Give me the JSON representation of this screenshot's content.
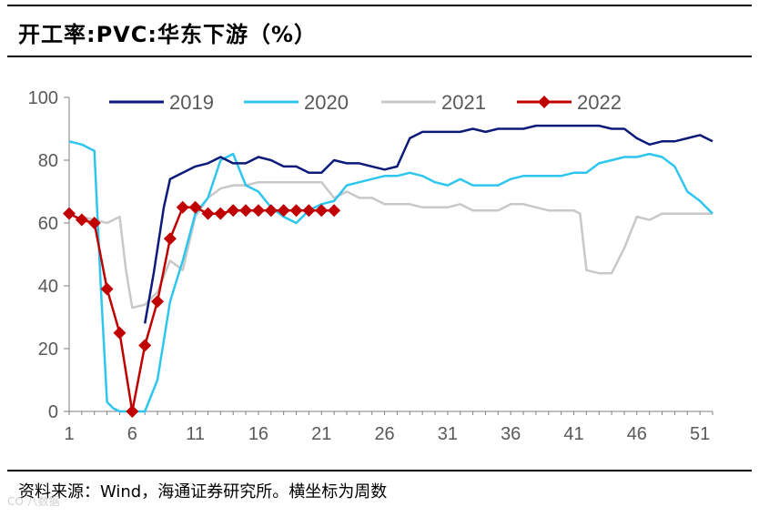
{
  "title": "开工率:PVC:华东下游（%）",
  "source": "资料来源：Wind，海通证券研究所。横坐标为周数",
  "watermark": "CO 八数据",
  "colors": {
    "series_2019": "#0c1a7a",
    "series_2020": "#2ec6ee",
    "series_2021": "#c8c8c8",
    "series_2022": "#c00000",
    "axis": "#7f7f7f"
  },
  "chart_data": {
    "type": "line",
    "title": "开工率:PVC:华东下游（%）",
    "xlabel": "",
    "ylabel": "",
    "x_ticks": [
      "1",
      "6",
      "11",
      "16",
      "21",
      "26",
      "31",
      "36",
      "41",
      "46",
      "51"
    ],
    "y_ticks": [
      "0",
      "20",
      "40",
      "60",
      "80",
      "100"
    ],
    "xlim": [
      1,
      52
    ],
    "ylim": [
      0,
      100
    ],
    "legend_position": "top",
    "series": [
      {
        "name": "2019",
        "x": [
          7,
          7.7,
          8.5,
          9,
          10,
          11,
          12,
          13,
          14,
          15,
          16,
          17,
          18,
          19,
          20,
          21,
          22,
          23,
          24,
          25,
          26,
          27,
          28,
          29,
          30,
          31,
          32,
          33,
          34,
          35,
          36,
          37,
          38,
          39,
          40,
          41,
          42,
          43,
          44,
          45,
          46,
          47,
          48,
          49,
          50,
          51,
          52
        ],
        "values": [
          28,
          44,
          65,
          74,
          76,
          78,
          79,
          81,
          79,
          79,
          81,
          80,
          78,
          78,
          76,
          76,
          80,
          79,
          79,
          78,
          77,
          78,
          87,
          89,
          89,
          89,
          89,
          90,
          89,
          90,
          90,
          90,
          91,
          91,
          91,
          91,
          91,
          91,
          90,
          90,
          87,
          85,
          86,
          86,
          87,
          88,
          86
        ]
      },
      {
        "name": "2020",
        "x": [
          1,
          2,
          3,
          3.5,
          4,
          4.5,
          5,
          6,
          7,
          8,
          9,
          10,
          11,
          12,
          13,
          14,
          15,
          16,
          17,
          18,
          19,
          20,
          21,
          22,
          23,
          24,
          25,
          26,
          27,
          28,
          29,
          30,
          31,
          32,
          33,
          34,
          35,
          36,
          37,
          38,
          39,
          40,
          41,
          42,
          43,
          44,
          45,
          46,
          47,
          48,
          49,
          50,
          51,
          52
        ],
        "values": [
          86,
          85,
          83,
          40,
          3,
          1,
          0,
          0,
          0,
          10,
          35,
          48,
          63,
          68,
          80,
          82,
          72,
          70,
          65,
          62,
          60,
          64,
          66,
          67,
          72,
          73,
          74,
          75,
          75,
          76,
          75,
          73,
          72,
          74,
          72,
          72,
          72,
          74,
          75,
          75,
          75,
          75,
          76,
          76,
          79,
          80,
          81,
          81,
          82,
          81,
          78,
          70,
          67,
          63
        ]
      },
      {
        "name": "2021",
        "x": [
          2,
          3,
          4,
          5,
          5.5,
          6,
          7,
          8,
          9,
          10,
          11,
          12,
          13,
          14,
          15,
          16,
          17,
          18,
          19,
          20,
          21,
          22,
          23,
          24,
          25,
          26,
          27,
          28,
          29,
          30,
          31,
          32,
          33,
          34,
          35,
          36,
          37,
          38,
          39,
          40,
          41,
          41.5,
          42,
          43,
          44,
          45,
          46,
          47,
          48,
          49,
          50,
          51,
          52
        ],
        "values": [
          62,
          61,
          60,
          62,
          45,
          33,
          34,
          38,
          48,
          45,
          62,
          68,
          71,
          72,
          72,
          73,
          73,
          73,
          73,
          73,
          73,
          68,
          70,
          68,
          68,
          66,
          66,
          66,
          65,
          65,
          65,
          66,
          64,
          64,
          64,
          66,
          66,
          65,
          64,
          64,
          64,
          63,
          45,
          44,
          44,
          52,
          62,
          61,
          63,
          63,
          63,
          63,
          63
        ]
      },
      {
        "name": "2022",
        "x": [
          1,
          2,
          3,
          4,
          5,
          6,
          7,
          8,
          9,
          10,
          11,
          12,
          13,
          14,
          15,
          16,
          17,
          18,
          19,
          20,
          21,
          22
        ],
        "values": [
          63,
          61,
          60,
          39,
          25,
          0,
          21,
          35,
          55,
          65,
          65,
          63,
          63,
          64,
          64,
          64,
          64,
          64,
          64,
          64,
          64,
          64
        ]
      }
    ]
  }
}
